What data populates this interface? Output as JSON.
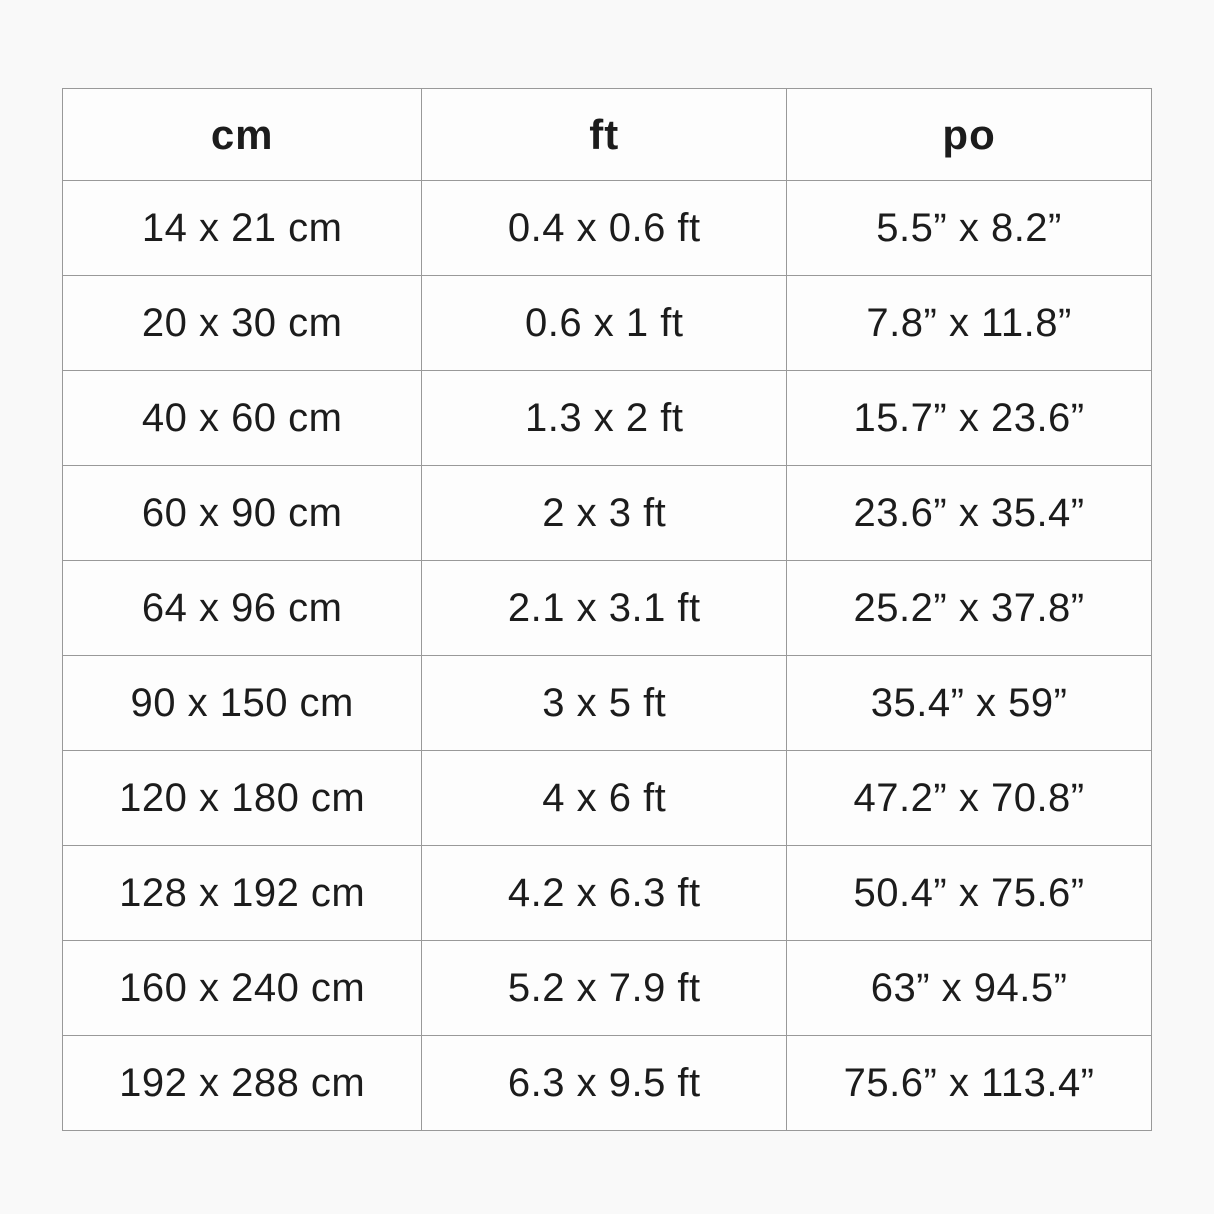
{
  "page": {
    "background_color": "#f9f9f9",
    "table_border_color": "#999999",
    "table_cell_background": "#fdfdfd",
    "text_color": "#1c1c1c"
  },
  "table": {
    "headers": [
      "cm",
      "ft",
      "po"
    ],
    "rows": [
      [
        "14 x 21 cm",
        "0.4 x 0.6 ft",
        "5.5” x 8.2”"
      ],
      [
        "20 x 30 cm",
        "0.6 x 1 ft",
        "7.8” x 11.8”"
      ],
      [
        "40 x 60 cm",
        "1.3 x 2 ft",
        "15.7” x 23.6”"
      ],
      [
        "60 x 90 cm",
        "2 x 3 ft",
        "23.6” x 35.4”"
      ],
      [
        "64 x 96 cm",
        "2.1 x 3.1 ft",
        "25.2” x 37.8”"
      ],
      [
        "90 x 150 cm",
        "3 x 5 ft",
        "35.4” x 59”"
      ],
      [
        "120 x 180 cm",
        "4 x 6 ft",
        "47.2” x 70.8”"
      ],
      [
        "128 x 192 cm",
        "4.2 x 6.3 ft",
        "50.4” x 75.6”"
      ],
      [
        "160 x 240 cm",
        "5.2 x 7.9 ft",
        "63” x 94.5”"
      ],
      [
        "192 x 288 cm",
        "6.3 x 9.5 ft",
        "75.6” x 113.4”"
      ]
    ]
  },
  "chart_data": {
    "type": "table",
    "title": "",
    "columns": [
      "cm",
      "ft",
      "po"
    ],
    "rows": [
      [
        "14 x 21 cm",
        "0.4 x 0.6 ft",
        "5.5” x 8.2”"
      ],
      [
        "20 x 30 cm",
        "0.6 x 1 ft",
        "7.8” x 11.8”"
      ],
      [
        "40 x 60 cm",
        "1.3 x 2 ft",
        "15.7” x 23.6”"
      ],
      [
        "60 x 90 cm",
        "2 x 3 ft",
        "23.6” x 35.4”"
      ],
      [
        "64 x 96 cm",
        "2.1 x 3.1 ft",
        "25.2” x 37.8”"
      ],
      [
        "90 x 150 cm",
        "3 x 5 ft",
        "35.4” x 59”"
      ],
      [
        "120 x 180 cm",
        "4 x 6 ft",
        "47.2” x 70.8”"
      ],
      [
        "128 x 192 cm",
        "4.2 x 6.3 ft",
        "50.4” x 75.6”"
      ],
      [
        "160 x 240 cm",
        "5.2 x 7.9 ft",
        "63” x 94.5”"
      ],
      [
        "192 x 288 cm",
        "6.3 x 9.5 ft",
        "75.6” x 113.4”"
      ]
    ]
  }
}
